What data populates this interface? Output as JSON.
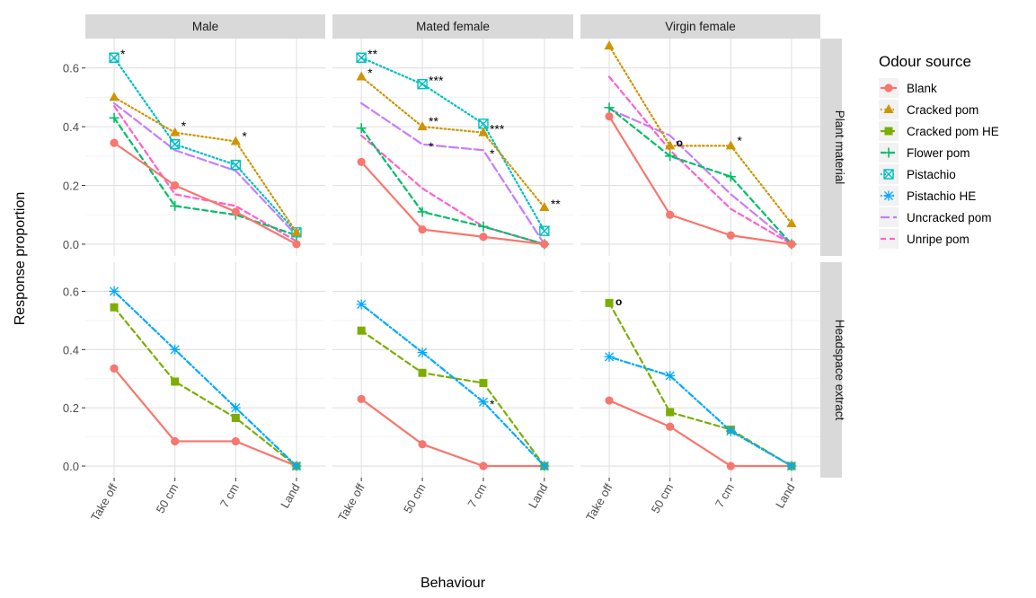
{
  "chart_data": {
    "type": "line",
    "ylabel": "Response proportion",
    "xlabel": "Behaviour",
    "categories": [
      "Take off",
      "50 cm",
      "7 cm",
      "Land"
    ],
    "y_ticks": [
      "0.0",
      "0.2",
      "0.4",
      "0.6"
    ],
    "ylim": [
      -0.04,
      0.7
    ],
    "grid": true,
    "legend": {
      "title": "Odour source",
      "placement": "right",
      "entries": [
        {
          "name": "Blank",
          "color": "#F8766D",
          "linetype": "solid",
          "marker": "circle"
        },
        {
          "name": "Cracked pom",
          "color": "#CD9600",
          "linetype": "dotted",
          "marker": "triangle"
        },
        {
          "name": "Cracked pom HE",
          "color": "#7CAE00",
          "linetype": "dashed",
          "marker": "square"
        },
        {
          "name": "Flower pom",
          "color": "#00BE67",
          "linetype": "dashed",
          "marker": "plus"
        },
        {
          "name": "Pistachio",
          "color": "#00BFC4",
          "linetype": "dotted",
          "marker": "boxx"
        },
        {
          "name": "Pistachio HE",
          "color": "#00A9FF",
          "linetype": "dotdash",
          "marker": "asterisk"
        },
        {
          "name": "Uncracked pom",
          "color": "#C77CFF",
          "linetype": "longdash",
          "marker": "none"
        },
        {
          "name": "Unripe pom",
          "color": "#FF61CC",
          "linetype": "dashed",
          "marker": "none"
        }
      ]
    },
    "columns": [
      "Male",
      "Mated female",
      "Virgin female"
    ],
    "rows": [
      "Plant material",
      "Headspace extract"
    ],
    "panels": [
      {
        "col": 0,
        "row": 0,
        "series": [
          {
            "name": "Uncracked pom",
            "values": [
              0.48,
              0.32,
              0.25,
              0.03
            ]
          },
          {
            "name": "Unripe pom",
            "values": [
              0.47,
              0.17,
              0.13,
              0.01
            ]
          },
          {
            "name": "Flower pom",
            "values": [
              0.43,
              0.13,
              0.1,
              0.03
            ]
          },
          {
            "name": "Blank",
            "values": [
              0.345,
              0.2,
              0.11,
              0.0
            ]
          },
          {
            "name": "Pistachio",
            "values": [
              0.635,
              0.34,
              0.27,
              0.04
            ]
          },
          {
            "name": "Cracked pom",
            "values": [
              0.5,
              0.38,
              0.35,
              0.04
            ]
          }
        ]
      },
      {
        "col": 1,
        "row": 0,
        "series": [
          {
            "name": "Uncracked pom",
            "values": [
              0.48,
              0.34,
              0.32,
              0.0
            ]
          },
          {
            "name": "Unripe pom",
            "values": [
              0.37,
              0.19,
              0.06,
              0.0
            ]
          },
          {
            "name": "Flower pom",
            "values": [
              0.395,
              0.11,
              0.06,
              0.0
            ]
          },
          {
            "name": "Blank",
            "values": [
              0.28,
              0.05,
              0.025,
              0.0
            ]
          },
          {
            "name": "Pistachio",
            "values": [
              0.635,
              0.545,
              0.41,
              0.045
            ]
          },
          {
            "name": "Cracked pom",
            "values": [
              0.57,
              0.4,
              0.38,
              0.125
            ]
          }
        ]
      },
      {
        "col": 2,
        "row": 0,
        "series": [
          {
            "name": "Uncracked pom",
            "values": [
              0.46,
              0.37,
              0.17,
              0.0
            ]
          },
          {
            "name": "Unripe pom",
            "values": [
              0.57,
              0.32,
              0.12,
              0.0
            ]
          },
          {
            "name": "Flower pom",
            "values": [
              0.465,
              0.3,
              0.23,
              0.0
            ]
          },
          {
            "name": "Blank",
            "values": [
              0.435,
              0.1,
              0.03,
              0.0
            ]
          },
          {
            "name": "Cracked pom",
            "values": [
              0.675,
              0.335,
              0.335,
              0.07
            ]
          }
        ]
      },
      {
        "col": 0,
        "row": 1,
        "series": [
          {
            "name": "Blank",
            "values": [
              0.335,
              0.085,
              0.085,
              0.0
            ]
          },
          {
            "name": "Cracked pom HE",
            "values": [
              0.545,
              0.29,
              0.165,
              0.0
            ]
          },
          {
            "name": "Pistachio HE",
            "values": [
              0.6,
              0.4,
              0.2,
              0.0
            ]
          }
        ]
      },
      {
        "col": 1,
        "row": 1,
        "series": [
          {
            "name": "Blank",
            "values": [
              0.23,
              0.075,
              0.0,
              0.0
            ]
          },
          {
            "name": "Cracked pom HE",
            "values": [
              0.465,
              0.32,
              0.285,
              0.0
            ]
          },
          {
            "name": "Pistachio HE",
            "values": [
              0.555,
              0.39,
              0.22,
              0.0
            ]
          }
        ]
      },
      {
        "col": 2,
        "row": 1,
        "series": [
          {
            "name": "Blank",
            "values": [
              0.225,
              0.135,
              0.0,
              0.0
            ]
          },
          {
            "name": "Cracked pom HE",
            "values": [
              0.56,
              0.185,
              0.125,
              0.0
            ]
          },
          {
            "name": "Pistachio HE",
            "values": [
              0.375,
              0.31,
              0.12,
              0.0
            ]
          }
        ]
      }
    ],
    "annotations": [
      {
        "col": 0,
        "row": 0,
        "category": "Take off",
        "y": 0.645,
        "text": "*"
      },
      {
        "col": 0,
        "row": 0,
        "category": "50 cm",
        "y": 0.4,
        "text": "*"
      },
      {
        "col": 0,
        "row": 0,
        "category": "7 cm",
        "y": 0.365,
        "text": "*"
      },
      {
        "col": 1,
        "row": 0,
        "category": "Take off",
        "y": 0.645,
        "text": "**"
      },
      {
        "col": 1,
        "row": 0,
        "category": "Take off",
        "y": 0.58,
        "text": "*"
      },
      {
        "col": 1,
        "row": 0,
        "category": "50 cm",
        "y": 0.555,
        "text": "***"
      },
      {
        "col": 1,
        "row": 0,
        "category": "50 cm",
        "y": 0.415,
        "text": "**"
      },
      {
        "col": 1,
        "row": 0,
        "category": "50 cm",
        "y": 0.33,
        "text": "*"
      },
      {
        "col": 1,
        "row": 0,
        "category": "7 cm",
        "y": 0.39,
        "text": "***"
      },
      {
        "col": 1,
        "row": 0,
        "category": "7 cm",
        "y": 0.305,
        "text": "*"
      },
      {
        "col": 1,
        "row": 0,
        "category": "Land",
        "y": 0.135,
        "text": "**"
      },
      {
        "col": 2,
        "row": 0,
        "category": "50 cm",
        "y": 0.345,
        "text": "o"
      },
      {
        "col": 2,
        "row": 0,
        "category": "7 cm",
        "y": 0.35,
        "text": "*"
      },
      {
        "col": 1,
        "row": 1,
        "category": "7 cm",
        "y": 0.21,
        "text": "*"
      },
      {
        "col": 2,
        "row": 1,
        "category": "Take off",
        "y": 0.565,
        "text": "o"
      }
    ]
  }
}
